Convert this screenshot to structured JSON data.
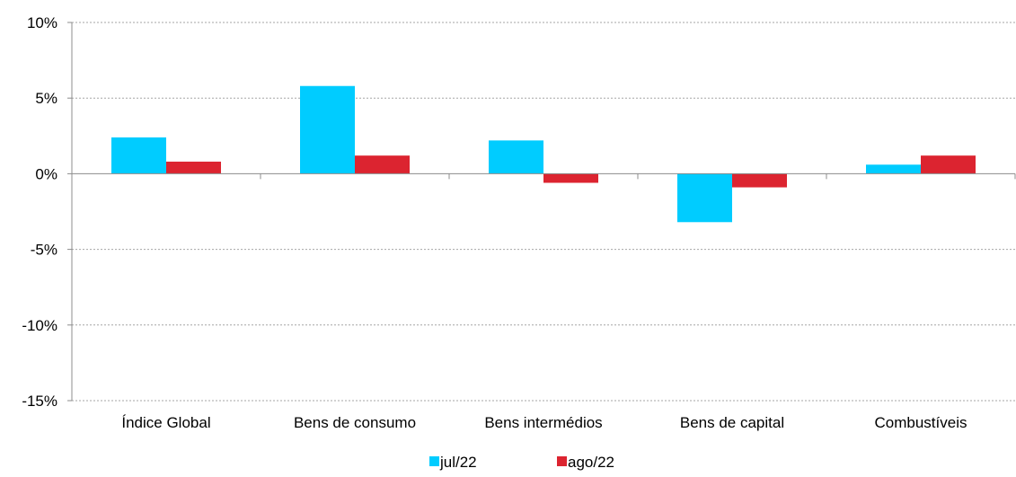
{
  "chart_data": {
    "type": "bar",
    "title": "",
    "xlabel": "",
    "ylabel": "",
    "categories": [
      "Índice Global",
      "Bens de consumo",
      "Bens intermédios",
      "Bens de capital",
      "Combustíveis"
    ],
    "series": [
      {
        "name": "jul/22",
        "color": "#00CCFF",
        "values": [
          2.4,
          5.8,
          2.2,
          -3.2,
          0.6
        ]
      },
      {
        "name": "ago/22",
        "color": "#DC2430",
        "values": [
          0.8,
          1.2,
          -0.6,
          -0.9,
          1.2
        ]
      }
    ],
    "ylim": [
      -15,
      10
    ],
    "yticks": [
      10,
      5,
      0,
      -5,
      -10,
      -15
    ],
    "ytick_labels": [
      "10%",
      "5%",
      "0%",
      "-5%",
      "-10%",
      "-15%"
    ],
    "grid": true,
    "grid_style": "dotted",
    "legend_position": "bottom-center"
  }
}
